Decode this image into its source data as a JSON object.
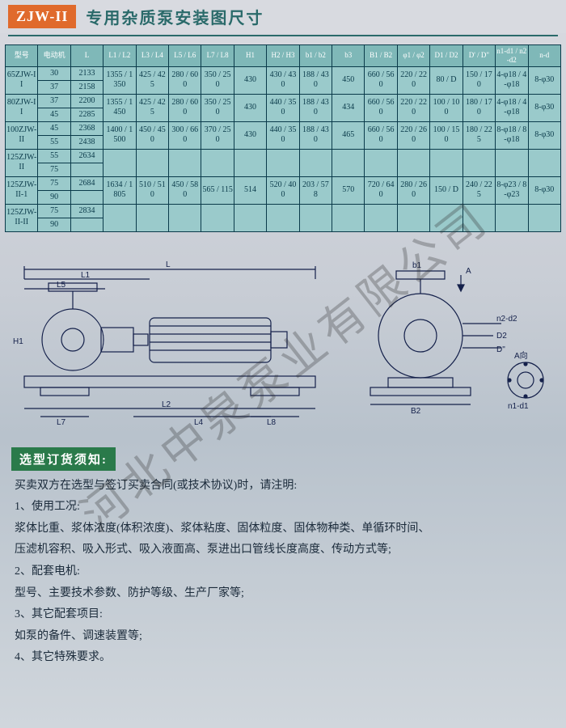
{
  "header": {
    "model_tag": "ZJW-II",
    "title": "专用杂质泵安装图尺寸"
  },
  "table": {
    "header_bg": "#7fb8b8",
    "cell_bg": "#9acacb",
    "border_color": "#0a3a4a",
    "columns": [
      "型号",
      "电动机",
      "L",
      "L1 / L2",
      "L3 / L4",
      "L5 / L6",
      "L7 / L8",
      "H1",
      "H2 / H3",
      "b1 / b2",
      "b3",
      "B1 / B2",
      "φ1 / φ2",
      "D1 / D2",
      "D' / D\"",
      "n1-d1 / n2-d2",
      "n-d"
    ],
    "rows": [
      {
        "model": "65ZJW-II",
        "motor": "30",
        "L": "2133",
        "c": [
          "1355 / 1350",
          "425 / 425",
          "280 / 600",
          "350 / 250",
          "430",
          "430 / 430",
          "188 / 430",
          "450",
          "660 / 560",
          "220 / 220",
          "80 / D",
          "150 / 170",
          "4-φ18 / 4-φ18",
          "8-φ30"
        ]
      },
      {
        "model": "",
        "motor": "37",
        "L": "2158",
        "c": [
          "",
          "",
          "",
          "",
          "",
          "",
          "",
          "",
          "",
          "",
          "",
          "",
          "",
          ""
        ]
      },
      {
        "model": "80ZJW-II",
        "motor": "37",
        "L": "2200",
        "c": [
          "1355 / 1450",
          "425 / 425",
          "280 / 600",
          "350 / 250",
          "430",
          "440 / 350",
          "188 / 430",
          "434",
          "660 / 560",
          "220 / 220",
          "100 / 100",
          "180 / 170",
          "4-φ18 / 4-φ18",
          "8-φ30"
        ]
      },
      {
        "model": "",
        "motor": "45",
        "L": "2285",
        "c": [
          "",
          "",
          "",
          "",
          "",
          "",
          "",
          "",
          "",
          "",
          "",
          "",
          "",
          ""
        ]
      },
      {
        "model": "100ZJW-II",
        "motor": "45",
        "L": "2368",
        "c": [
          "1400 / 1500",
          "450 / 450",
          "300 / 660",
          "370 / 250",
          "430",
          "440 / 350",
          "188 / 430",
          "465",
          "660 / 560",
          "220 / 260",
          "100 / 150",
          "180 / 225",
          "8-φ18 / 8-φ18",
          "8-φ30"
        ]
      },
      {
        "model": "",
        "motor": "55",
        "L": "2438",
        "c": [
          "",
          "",
          "",
          "",
          "",
          "",
          "",
          "",
          "",
          "",
          "",
          "",
          "",
          ""
        ]
      },
      {
        "model": "125ZJW-II",
        "motor": "55",
        "L": "2634",
        "c": [
          "",
          "",
          "",
          "",
          "",
          "",
          "",
          "",
          "",
          "",
          "",
          "",
          "",
          ""
        ]
      },
      {
        "model": "",
        "motor": "75",
        "L": "",
        "c": [
          "",
          "",
          "",
          "",
          "",
          "",
          "",
          "",
          "",
          "",
          "",
          "",
          "",
          ""
        ]
      },
      {
        "model": "125ZJW-II-1",
        "motor": "75",
        "L": "2684",
        "c": [
          "1634 / 1805",
          "510 / 510",
          "450 / 580",
          "565 / 115",
          "514",
          "520 / 400",
          "203 / 578",
          "570",
          "720 / 640",
          "280 / 260",
          "150 / D",
          "240 / 225",
          "8-φ23 / 8-φ23",
          "8-φ30"
        ]
      },
      {
        "model": "",
        "motor": "90",
        "L": "",
        "c": [
          "",
          "",
          "",
          "",
          "",
          "",
          "",
          "",
          "",
          "",
          "",
          "",
          "",
          ""
        ]
      },
      {
        "model": "125ZJW-II-II",
        "motor": "75",
        "L": "2834",
        "c": [
          "",
          "",
          "",
          "",
          "",
          "",
          "",
          "",
          "",
          "",
          "",
          "",
          "",
          ""
        ]
      },
      {
        "model": "",
        "motor": "90",
        "L": "",
        "c": [
          "",
          "",
          "",
          "",
          "",
          "",
          "",
          "",
          "",
          "",
          "",
          "",
          "",
          ""
        ]
      }
    ],
    "merge_pairs": [
      [
        0,
        1
      ],
      [
        2,
        3
      ],
      [
        4,
        5
      ],
      [
        6,
        11
      ]
    ]
  },
  "diagram": {
    "stroke": "#14204a",
    "labels": {
      "L": "L",
      "L1": "L1",
      "L5": "L5",
      "H1": "H1",
      "L2": "L2",
      "L7": "L7",
      "L8": "L8",
      "L4": "L4",
      "A": "A",
      "b1": "b1",
      "B2": "B2",
      "n2d2": "n2-d2",
      "D2": "D2",
      "D": "D\"",
      "AR": "A向",
      "n1d1": "n1-d1"
    }
  },
  "selection": {
    "tag": "选型订货须知:",
    "lines": [
      "买卖双方在选型与签订买卖合同(或技术协议)时，请注明:",
      "1、使用工况:",
      "浆体比重、浆体浓度(体积浓度)、浆体粘度、固体粒度、固体物种类、单循环时间、",
      "压滤机容积、吸入形式、吸入液面高、泵进出口管线长度高度、传动方式等;",
      "2、配套电机:",
      "型号、主要技术参数、防护等级、生产厂家等;",
      "3、其它配套项目:",
      "如泵的备件、调速装置等;",
      "4、其它特殊要求。"
    ]
  },
  "watermark": "河北中泉泵业有限公司"
}
